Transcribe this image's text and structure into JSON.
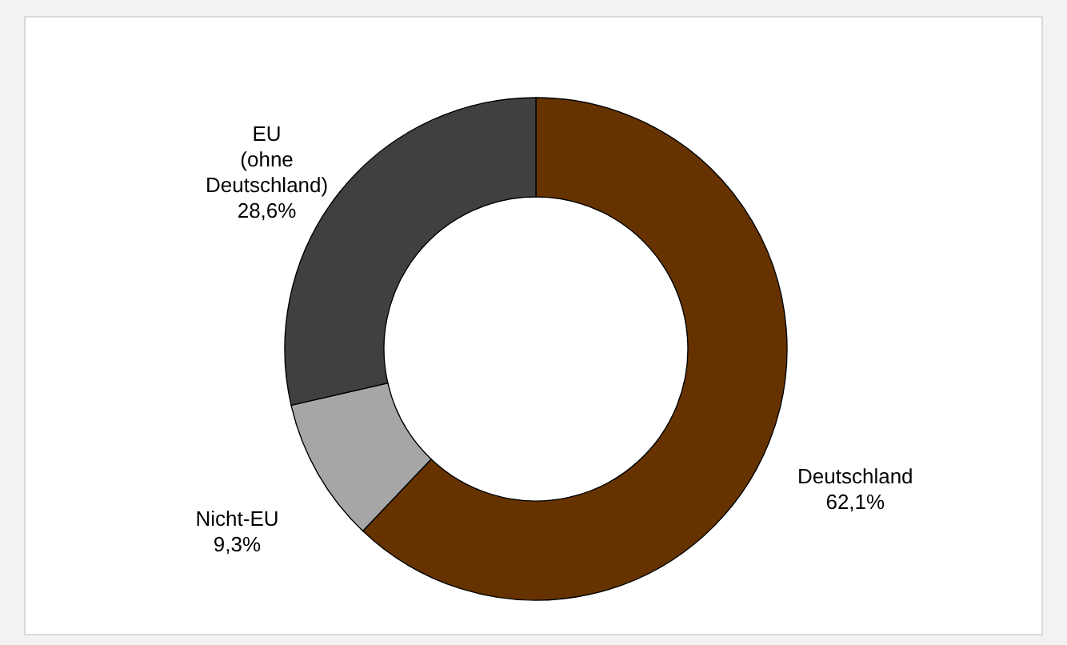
{
  "chart_data": {
    "type": "donut",
    "categories": [
      "Deutschland",
      "Nicht-EU",
      "EU (ohne Deutschland)"
    ],
    "values": [
      62.1,
      9.3,
      28.6
    ],
    "colors": [
      "#663300",
      "#a6a6a6",
      "#404040"
    ],
    "value_labels": [
      "62,1%",
      "9,3%",
      "28,6%"
    ]
  }
}
